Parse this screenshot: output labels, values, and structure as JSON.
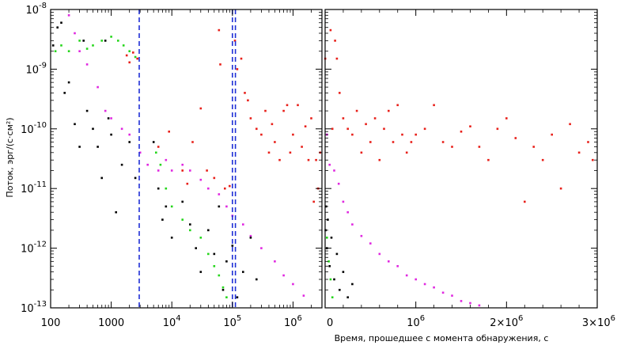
{
  "chart_data": [
    {
      "panel": "left",
      "type": "scatter",
      "xscale": "log",
      "yscale": "log",
      "xlim": [
        100,
        3000000
      ],
      "ylim": [
        1e-13,
        1e-08
      ],
      "ylabel": "Поток, эрг/(с·см²)",
      "xticks": [
        {
          "value": 100,
          "label": "100"
        },
        {
          "value": 1000,
          "label": "1000"
        },
        {
          "value": 10000,
          "base": "10",
          "exp": "4"
        },
        {
          "value": 100000,
          "base": "10",
          "exp": "5"
        },
        {
          "value": 1000000,
          "base": "10",
          "exp": "6"
        }
      ],
      "yticks": [
        {
          "value": 1e-08,
          "base": "10",
          "exp": "-8"
        },
        {
          "value": 1e-09,
          "base": "10",
          "exp": "-9"
        },
        {
          "value": 1e-10,
          "base": "10",
          "exp": "-10"
        },
        {
          "value": 1e-11,
          "base": "10",
          "exp": "-11"
        },
        {
          "value": 1e-12,
          "base": "10",
          "exp": "-12"
        },
        {
          "value": 1e-13,
          "base": "10",
          "exp": "-13"
        }
      ],
      "vlines": [
        {
          "x": 2900,
          "color": "#1f2fd6",
          "style": "dashed"
        },
        {
          "x": 100000,
          "color": "#1f2fd6",
          "style": "dashed"
        },
        {
          "x": 112000,
          "color": "#1f2fd6",
          "style": "dashed"
        }
      ],
      "series": [
        {
          "color": "#e8201a",
          "points": [
            [
              1800,
              1.7e-09
            ],
            [
              2000,
              1.3e-09
            ],
            [
              2300,
              1.9e-09
            ],
            [
              2700,
              1.5e-09
            ],
            [
              6000,
              5e-11
            ],
            [
              9000,
              9e-11
            ],
            [
              15000,
              2e-11
            ],
            [
              18000,
              1.2e-11
            ],
            [
              22000,
              6e-11
            ],
            [
              30000,
              2.2e-10
            ],
            [
              38000,
              2e-11
            ],
            [
              50000,
              1.5e-11
            ],
            [
              60000,
              4.5e-09
            ],
            [
              63000,
              1.2e-09
            ],
            [
              75000,
              1e-11
            ],
            [
              90000,
              1.1e-11
            ],
            [
              110000,
              3e-09
            ],
            [
              120000,
              1e-09
            ],
            [
              140000,
              1.5e-09
            ],
            [
              160000,
              4e-10
            ],
            [
              180000,
              3e-10
            ],
            [
              200000,
              1.5e-10
            ],
            [
              250000,
              1e-10
            ],
            [
              300000,
              8e-11
            ],
            [
              350000,
              2e-10
            ],
            [
              400000,
              4e-11
            ],
            [
              450000,
              1.2e-10
            ],
            [
              500000,
              6e-11
            ],
            [
              600000,
              3e-11
            ],
            [
              700000,
              2e-10
            ],
            [
              800000,
              2.5e-10
            ],
            [
              900000,
              4e-11
            ],
            [
              1000000,
              8e-11
            ],
            [
              1200000,
              2.5e-10
            ],
            [
              1400000,
              5e-11
            ],
            [
              1600000,
              1.1e-10
            ],
            [
              1800000,
              3e-11
            ],
            [
              2000000,
              1.5e-10
            ],
            [
              2200000,
              6e-12
            ],
            [
              2400000,
              3e-11
            ],
            [
              2600000,
              1e-11
            ],
            [
              2800000,
              4e-11
            ]
          ]
        },
        {
          "color": "#e028e0",
          "points": [
            [
              200,
              8e-09
            ],
            [
              250,
              4e-09
            ],
            [
              300,
              2e-09
            ],
            [
              400,
              1.2e-09
            ],
            [
              600,
              5e-10
            ],
            [
              800,
              2e-10
            ],
            [
              1000,
              1.5e-10
            ],
            [
              1500,
              1e-10
            ],
            [
              2000,
              8e-11
            ],
            [
              3000,
              4e-11
            ],
            [
              4000,
              2.5e-11
            ],
            [
              6000,
              2e-11
            ],
            [
              8000,
              3e-11
            ],
            [
              10000,
              2e-11
            ],
            [
              15000,
              2.5e-11
            ],
            [
              20000,
              2e-11
            ],
            [
              30000,
              1.4e-11
            ],
            [
              40000,
              1e-11
            ],
            [
              60000,
              8e-12
            ],
            [
              80000,
              5e-12
            ],
            [
              100000,
              3.5e-12
            ],
            [
              150000,
              2.5e-12
            ],
            [
              200000,
              1.6e-12
            ],
            [
              300000,
              1e-12
            ],
            [
              500000,
              6e-13
            ],
            [
              700000,
              3.5e-13
            ],
            [
              1000000,
              2.5e-13
            ],
            [
              1500000,
              1.6e-13
            ]
          ]
        },
        {
          "color": "#26d61c",
          "points": [
            [
              120,
              2e-09
            ],
            [
              150,
              2.5e-09
            ],
            [
              200,
              2e-09
            ],
            [
              300,
              3e-09
            ],
            [
              400,
              2.2e-09
            ],
            [
              500,
              2.5e-09
            ],
            [
              700,
              3e-09
            ],
            [
              1000,
              3.5e-09
            ],
            [
              1300,
              3e-09
            ],
            [
              1600,
              2.5e-09
            ],
            [
              2000,
              2e-09
            ],
            [
              2500,
              1.6e-09
            ],
            [
              5500,
              4e-11
            ],
            [
              6500,
              2.5e-11
            ],
            [
              8000,
              1e-11
            ],
            [
              10000,
              5e-12
            ],
            [
              15000,
              3e-12
            ],
            [
              20000,
              2e-12
            ],
            [
              30000,
              1.5e-12
            ],
            [
              40000,
              8e-13
            ],
            [
              50000,
              5e-13
            ],
            [
              60000,
              3.5e-13
            ],
            [
              70000,
              2.2e-13
            ],
            [
              80000,
              1.5e-13
            ]
          ]
        },
        {
          "color": "#000000",
          "points": [
            [
              110,
              2.5e-09
            ],
            [
              130,
              5e-09
            ],
            [
              150,
              6e-09
            ],
            [
              170,
              4e-10
            ],
            [
              200,
              6e-10
            ],
            [
              250,
              1.2e-10
            ],
            [
              300,
              5e-11
            ],
            [
              350,
              3e-09
            ],
            [
              400,
              2e-10
            ],
            [
              500,
              1e-10
            ],
            [
              600,
              5e-11
            ],
            [
              700,
              1.5e-11
            ],
            [
              800,
              3e-09
            ],
            [
              900,
              1.5e-10
            ],
            [
              1000,
              8e-11
            ],
            [
              1200,
              4e-12
            ],
            [
              1500,
              2.5e-11
            ],
            [
              2000,
              6e-11
            ],
            [
              2500,
              1.5e-11
            ],
            [
              5000,
              6e-11
            ],
            [
              6000,
              1e-11
            ],
            [
              7000,
              3e-12
            ],
            [
              8000,
              5e-12
            ],
            [
              10000,
              1.5e-12
            ],
            [
              15000,
              6e-12
            ],
            [
              20000,
              2.5e-12
            ],
            [
              25000,
              1e-12
            ],
            [
              30000,
              4e-13
            ],
            [
              40000,
              2e-12
            ],
            [
              50000,
              8e-13
            ],
            [
              60000,
              5e-12
            ],
            [
              70000,
              2e-13
            ],
            [
              80000,
              6e-13
            ],
            [
              100000,
              1.1e-12
            ],
            [
              120000,
              1.5e-13
            ],
            [
              150000,
              4e-13
            ],
            [
              200000,
              1.5e-12
            ],
            [
              250000,
              3e-13
            ]
          ]
        }
      ]
    },
    {
      "panel": "right",
      "type": "scatter",
      "xscale": "linear",
      "yscale": "log",
      "xlim": [
        0,
        3000000
      ],
      "ylim": [
        1e-13,
        1e-08
      ],
      "xlabel": "Время, прошедшее с момента обнаружения, с",
      "xticks": [
        {
          "value": 0,
          "label": "0"
        },
        {
          "value": 1000000,
          "base": "10",
          "exp": "6"
        },
        {
          "value": 2000000,
          "base": "2×10",
          "exp": "6"
        },
        {
          "value": 3000000,
          "base": "3×10",
          "exp": "6"
        }
      ],
      "series": [
        {
          "color": "#e8201a",
          "points": [
            [
              2000,
              1.5e-09
            ],
            [
              60000,
              4.5e-09
            ],
            [
              80000,
              1e-10
            ],
            [
              110000,
              3e-09
            ],
            [
              130000,
              1.5e-09
            ],
            [
              160000,
              4e-10
            ],
            [
              200000,
              1.5e-10
            ],
            [
              250000,
              1e-10
            ],
            [
              300000,
              8e-11
            ],
            [
              350000,
              2e-10
            ],
            [
              400000,
              4e-11
            ],
            [
              450000,
              1.2e-10
            ],
            [
              500000,
              6e-11
            ],
            [
              550000,
              1.5e-10
            ],
            [
              600000,
              3e-11
            ],
            [
              650000,
              1e-10
            ],
            [
              700000,
              2e-10
            ],
            [
              750000,
              6e-11
            ],
            [
              800000,
              2.5e-10
            ],
            [
              850000,
              8e-11
            ],
            [
              900000,
              4e-11
            ],
            [
              950000,
              6e-11
            ],
            [
              1000000,
              8e-11
            ],
            [
              1100000,
              1e-10
            ],
            [
              1200000,
              2.5e-10
            ],
            [
              1300000,
              6e-11
            ],
            [
              1400000,
              5e-11
            ],
            [
              1500000,
              9e-11
            ],
            [
              1600000,
              1.1e-10
            ],
            [
              1700000,
              5e-11
            ],
            [
              1800000,
              3e-11
            ],
            [
              1900000,
              1e-10
            ],
            [
              2000000,
              1.5e-10
            ],
            [
              2100000,
              7e-11
            ],
            [
              2200000,
              6e-12
            ],
            [
              2300000,
              5e-11
            ],
            [
              2400000,
              3e-11
            ],
            [
              2500000,
              8e-11
            ],
            [
              2600000,
              1e-11
            ],
            [
              2700000,
              1.2e-10
            ],
            [
              2800000,
              4e-11
            ],
            [
              2900000,
              6e-11
            ],
            [
              2950000,
              3e-11
            ]
          ]
        },
        {
          "color": "#e028e0",
          "points": [
            [
              20000,
              8e-11
            ],
            [
              50000,
              2.5e-11
            ],
            [
              100000,
              2e-11
            ],
            [
              150000,
              1.2e-11
            ],
            [
              200000,
              6e-12
            ],
            [
              250000,
              4e-12
            ],
            [
              300000,
              2.5e-12
            ],
            [
              400000,
              1.6e-12
            ],
            [
              500000,
              1.2e-12
            ],
            [
              600000,
              8e-13
            ],
            [
              700000,
              6e-13
            ],
            [
              800000,
              5e-13
            ],
            [
              900000,
              3.5e-13
            ],
            [
              1000000,
              3e-13
            ],
            [
              1100000,
              2.5e-13
            ],
            [
              1200000,
              2.2e-13
            ],
            [
              1300000,
              1.8e-13
            ],
            [
              1400000,
              1.6e-13
            ],
            [
              1500000,
              1.3e-13
            ],
            [
              1600000,
              1.2e-13
            ],
            [
              1700000,
              1.1e-13
            ]
          ]
        },
        {
          "color": "#26d61c",
          "points": [
            [
              20000,
              1.5e-12
            ],
            [
              40000,
              6e-13
            ],
            [
              60000,
              3e-13
            ],
            [
              80000,
              1.5e-13
            ]
          ]
        },
        {
          "color": "#000000",
          "points": [
            [
              5000,
              2e-12
            ],
            [
              10000,
              5e-12
            ],
            [
              20000,
              1e-12
            ],
            [
              30000,
              3e-12
            ],
            [
              50000,
              5e-13
            ],
            [
              70000,
              1.5e-12
            ],
            [
              100000,
              3e-13
            ],
            [
              130000,
              8e-13
            ],
            [
              160000,
              2e-13
            ],
            [
              200000,
              4e-13
            ],
            [
              250000,
              1.5e-13
            ],
            [
              300000,
              2.5e-13
            ]
          ]
        }
      ]
    }
  ]
}
